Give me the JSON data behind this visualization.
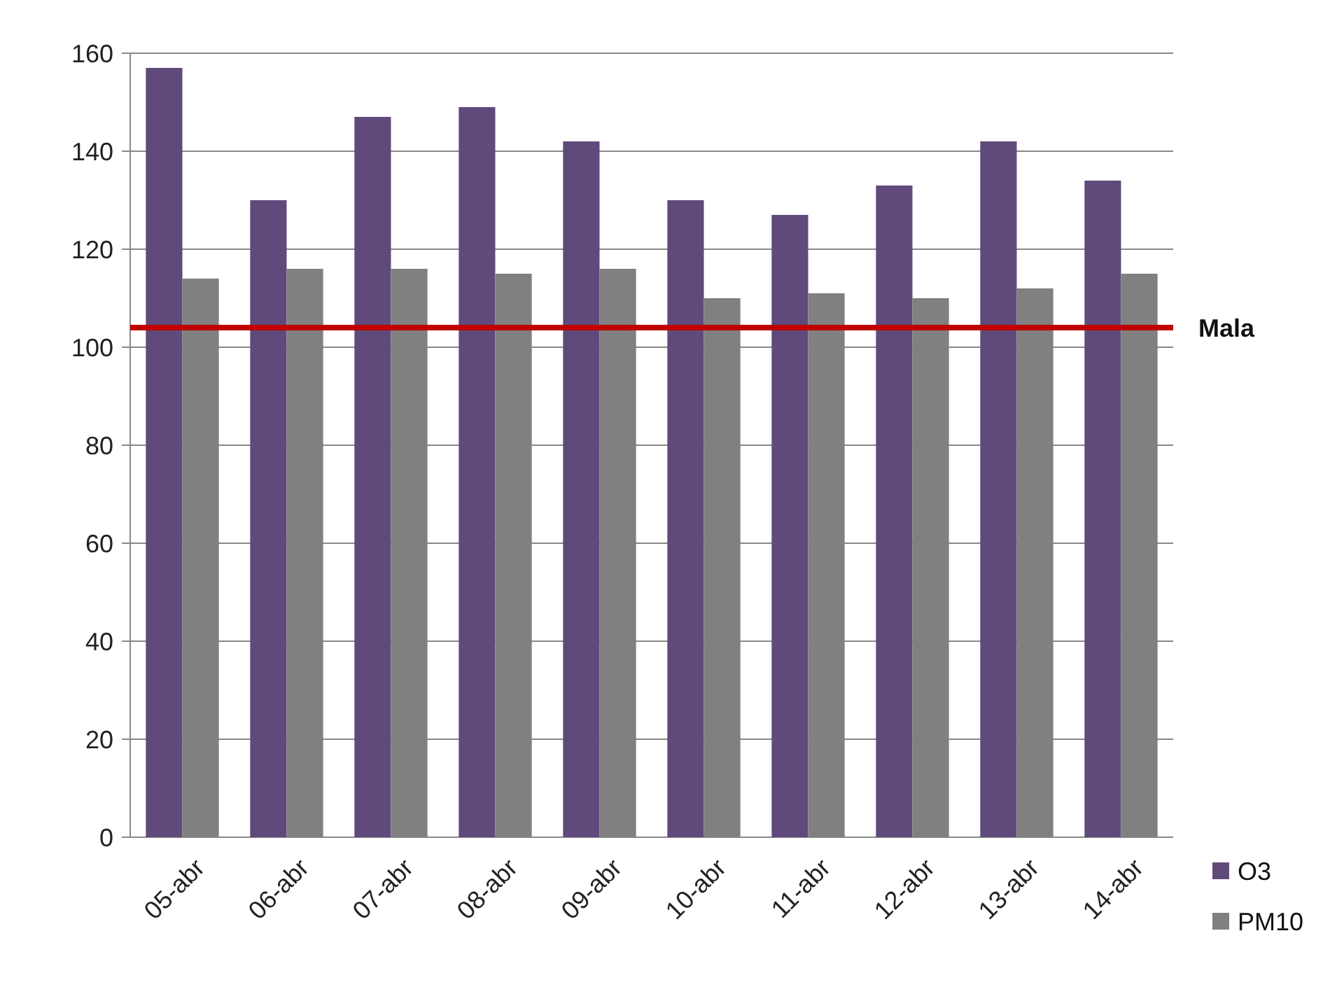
{
  "chart_data": {
    "type": "bar",
    "categories": [
      "05-abr",
      "06-abr",
      "07-abr",
      "08-abr",
      "09-abr",
      "10-abr",
      "11-abr",
      "12-abr",
      "13-abr",
      "14-abr"
    ],
    "series": [
      {
        "name": "O3",
        "color": "#604a7b",
        "values": [
          157,
          130,
          147,
          149,
          142,
          130,
          127,
          133,
          142,
          134
        ]
      },
      {
        "name": "PM10",
        "color": "#808080",
        "values": [
          114,
          116,
          116,
          115,
          116,
          110,
          111,
          110,
          112,
          115
        ]
      }
    ],
    "ylim": [
      0,
      160
    ],
    "yticks": [
      0,
      20,
      40,
      60,
      80,
      100,
      120,
      140,
      160
    ],
    "grid": "y",
    "legend": "bottom right",
    "ref_lines": [
      {
        "axis": "y",
        "value": 104,
        "label": "Mala",
        "color": "#c00000"
      }
    ]
  }
}
